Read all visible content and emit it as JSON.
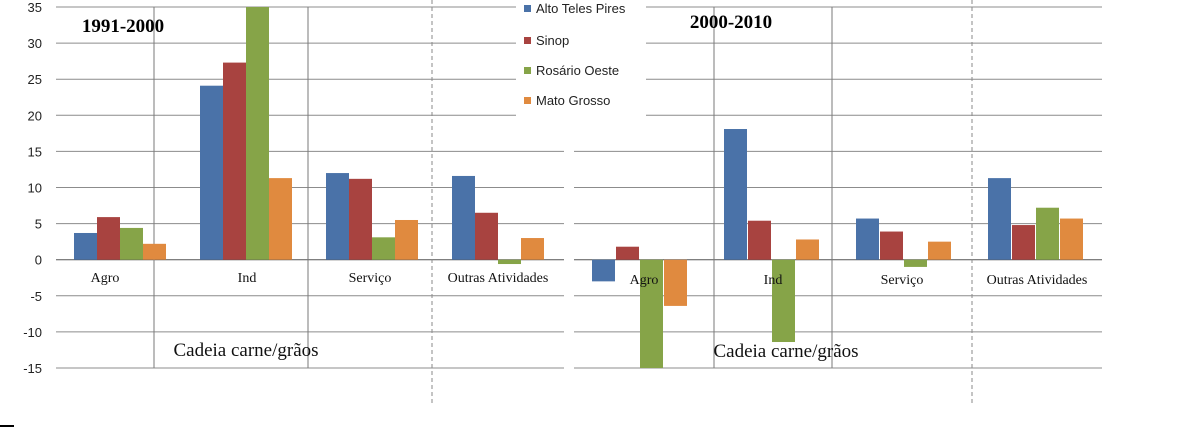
{
  "chart_data": {
    "type": "bar",
    "ylim": [
      -15,
      35
    ],
    "yticks": [
      -15,
      -10,
      -5,
      0,
      5,
      10,
      15,
      20,
      25,
      30,
      35
    ],
    "series": [
      {
        "name": "Alto Teles Pires",
        "color": "#4a72a8"
      },
      {
        "name": "Sinop",
        "color": "#a84340"
      },
      {
        "name": "Rosário Oeste",
        "color": "#86a448"
      },
      {
        "name": "Mato Grosso",
        "color": "#e08a3f"
      }
    ],
    "panels": [
      {
        "period": "1991-2000",
        "group_label": "Cadeia carne/grãos",
        "categories": [
          "Agro",
          "Ind",
          "Serviço",
          "Outras Atividades"
        ],
        "values": [
          [
            3.7,
            5.9,
            4.4,
            2.2
          ],
          [
            24.1,
            27.3,
            35,
            11.3
          ],
          [
            12,
            11.2,
            3.1,
            5.5
          ],
          [
            11.6,
            6.5,
            -0.6,
            3
          ]
        ]
      },
      {
        "period": "2000-2010",
        "group_label": "Cadeia carne/grãos",
        "categories": [
          "Agro",
          "Ind",
          "Serviço",
          "Outras Atividades"
        ],
        "values": [
          [
            -3,
            1.8,
            -15,
            -6.4
          ],
          [
            18.1,
            5.4,
            -11.4,
            2.8
          ],
          [
            5.7,
            3.9,
            -1,
            2.5
          ],
          [
            11.3,
            4.8,
            7.2,
            5.7
          ]
        ]
      }
    ]
  }
}
